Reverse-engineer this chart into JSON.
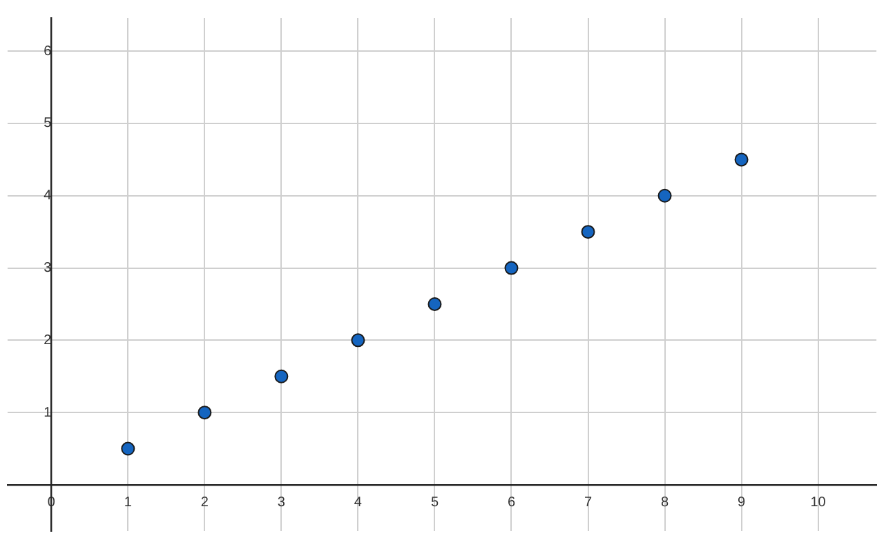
{
  "chart_data": {
    "type": "scatter",
    "x": [
      1,
      2,
      3,
      4,
      5,
      6,
      7,
      8,
      9
    ],
    "values": [
      0.5,
      1,
      1.5,
      2,
      2.5,
      3,
      3.5,
      4,
      4.5
    ],
    "color": "#1565c0",
    "marker": "circle",
    "xlim": [
      -0.57,
      10.76
    ],
    "ylim": [
      -0.64,
      6.46
    ],
    "xticks": [
      0,
      1,
      2,
      3,
      4,
      5,
      6,
      7,
      8,
      9,
      10
    ],
    "yticks": [
      1,
      2,
      3,
      4,
      5,
      6
    ],
    "grid": true
  }
}
